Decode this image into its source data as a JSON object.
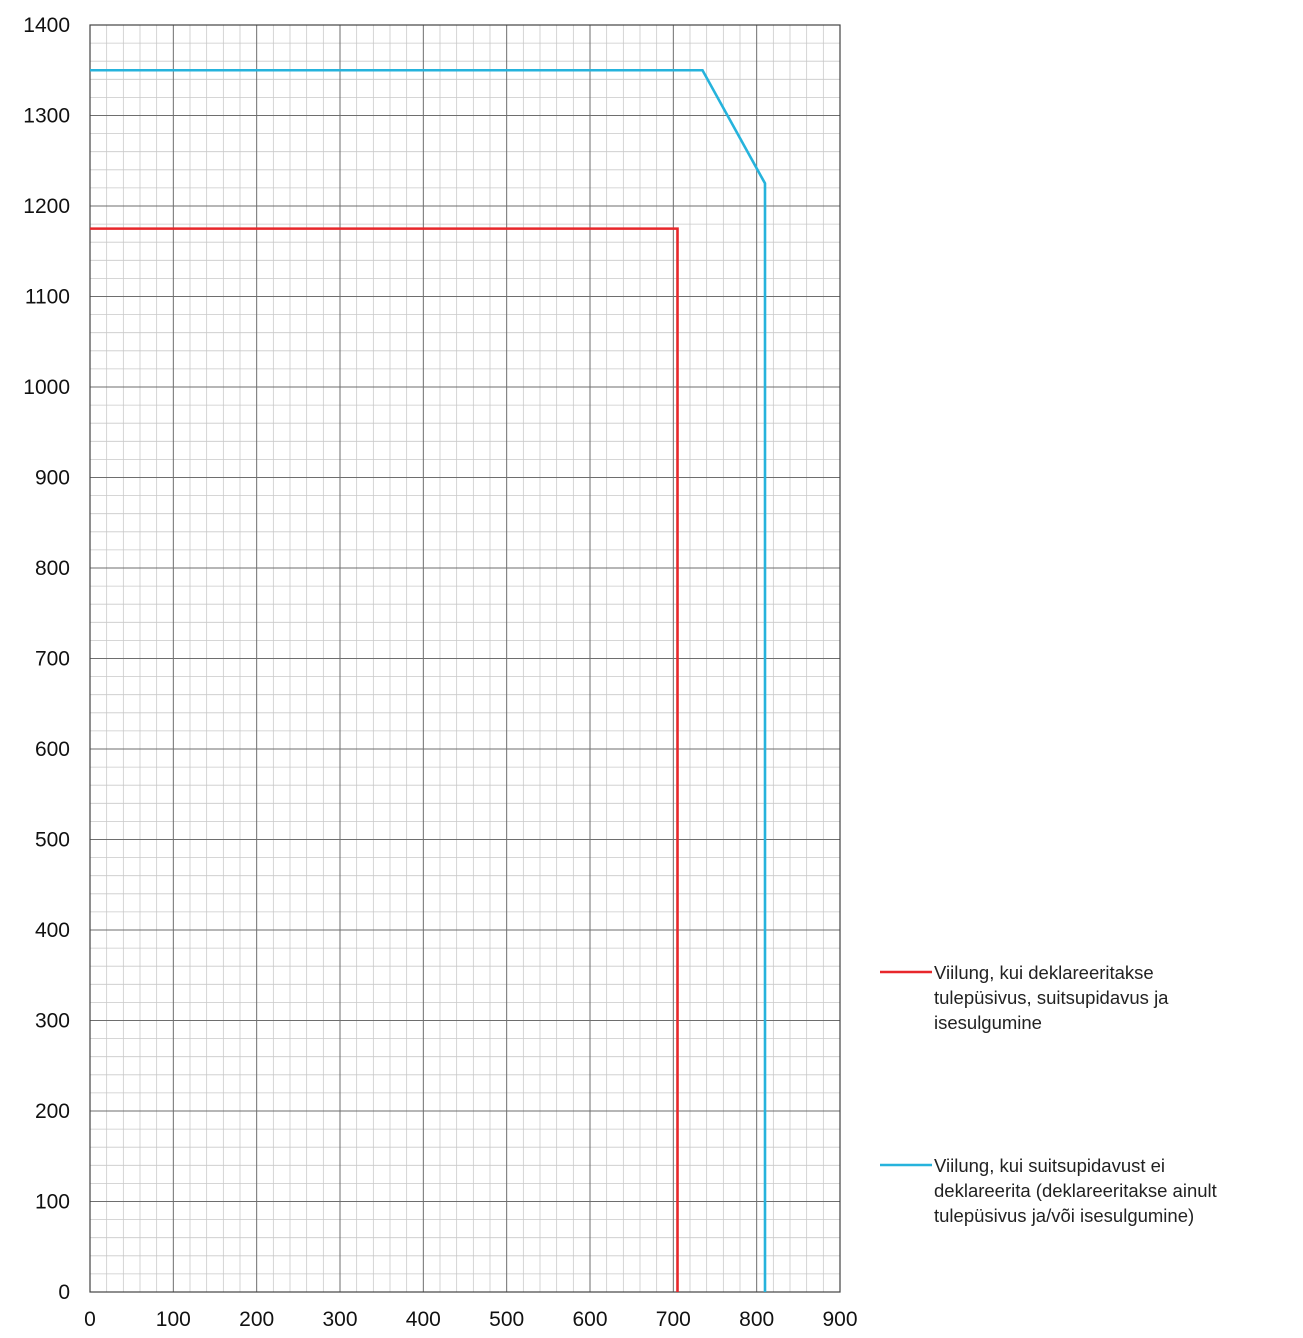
{
  "chart_data": {
    "type": "line",
    "title": "",
    "xlabel": "",
    "ylabel": "",
    "xlim": [
      0,
      900
    ],
    "ylim": [
      0,
      1400
    ],
    "x_ticks": [
      "0",
      "100",
      "200",
      "300",
      "400",
      "500",
      "600",
      "700",
      "800",
      "900"
    ],
    "y_ticks": [
      "0",
      "100",
      "200",
      "300",
      "400",
      "500",
      "600",
      "700",
      "800",
      "900",
      "1000",
      "1100",
      "1200",
      "1300",
      "1400"
    ],
    "grid": {
      "major_x_step": 100,
      "major_y_step": 100,
      "minor_x_step": 20,
      "minor_y_step": 20
    },
    "legend_position": "right",
    "series": [
      {
        "name": "Viilung, kui deklareeritakse tulepüsivus, suitsupidavus ja isesulgumine",
        "color": "#e8272b",
        "points": [
          [
            0,
            1175
          ],
          [
            705,
            1175
          ],
          [
            705,
            0
          ]
        ]
      },
      {
        "name": "Viilung, kui suitsupidavust ei deklareerita (deklareeritakse ainult tulepüsivus ja/või isesulgumine)",
        "color": "#26b3dc",
        "points": [
          [
            0,
            1350
          ],
          [
            735,
            1350
          ],
          [
            810,
            1225
          ],
          [
            810,
            0
          ]
        ]
      }
    ]
  }
}
